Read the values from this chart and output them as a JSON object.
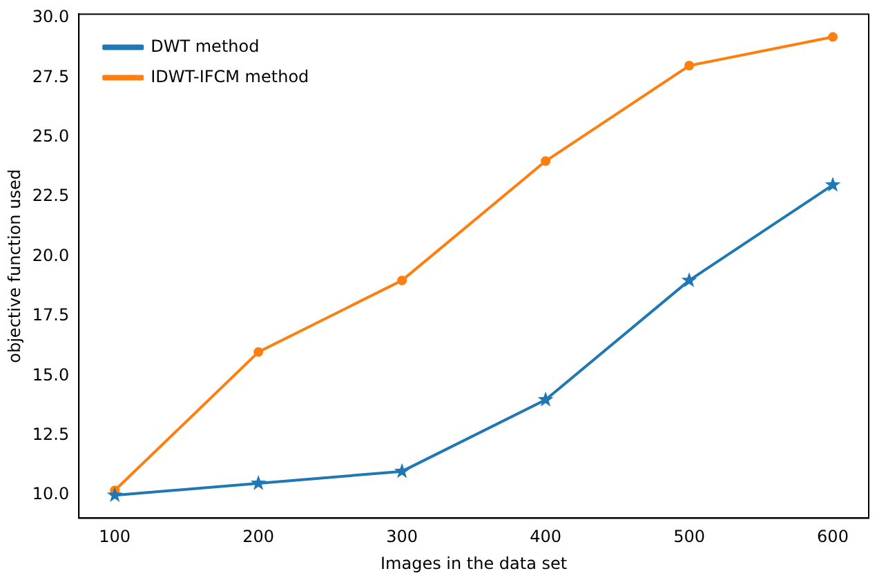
{
  "chart_data": {
    "type": "line",
    "xlabel": "Images in the data set",
    "ylabel": "objective function used",
    "x": [
      100,
      200,
      300,
      400,
      500,
      600
    ],
    "series": [
      {
        "name": "DWT method",
        "color": "#1f77b4",
        "marker": "star",
        "values": [
          10.0,
          10.5,
          11.0,
          14.0,
          19.0,
          23.0
        ]
      },
      {
        "name": "IDWT-IFCM method",
        "color": "#ff7f0e",
        "marker": "circle",
        "values": [
          10.2,
          16.0,
          19.0,
          24.0,
          28.0,
          29.2
        ]
      }
    ],
    "xlim": [
      75,
      625
    ],
    "xticks": [
      100,
      200,
      300,
      400,
      500,
      600
    ],
    "ylim": [
      9.04,
      30.16
    ],
    "yticks": [
      {
        "value": 10,
        "label": "10.0"
      },
      {
        "value": 12.5,
        "label": "12.5"
      },
      {
        "value": 15,
        "label": "15.0"
      },
      {
        "value": 17.5,
        "label": "17.5"
      },
      {
        "value": 20,
        "label": "20.0"
      },
      {
        "value": 22.5,
        "label": "22.5"
      },
      {
        "value": 25,
        "label": "25.0"
      },
      {
        "value": 27.5,
        "label": "27.5"
      },
      {
        "value": 30,
        "label": "30.0"
      }
    ],
    "grid": false,
    "legend": "top left"
  }
}
